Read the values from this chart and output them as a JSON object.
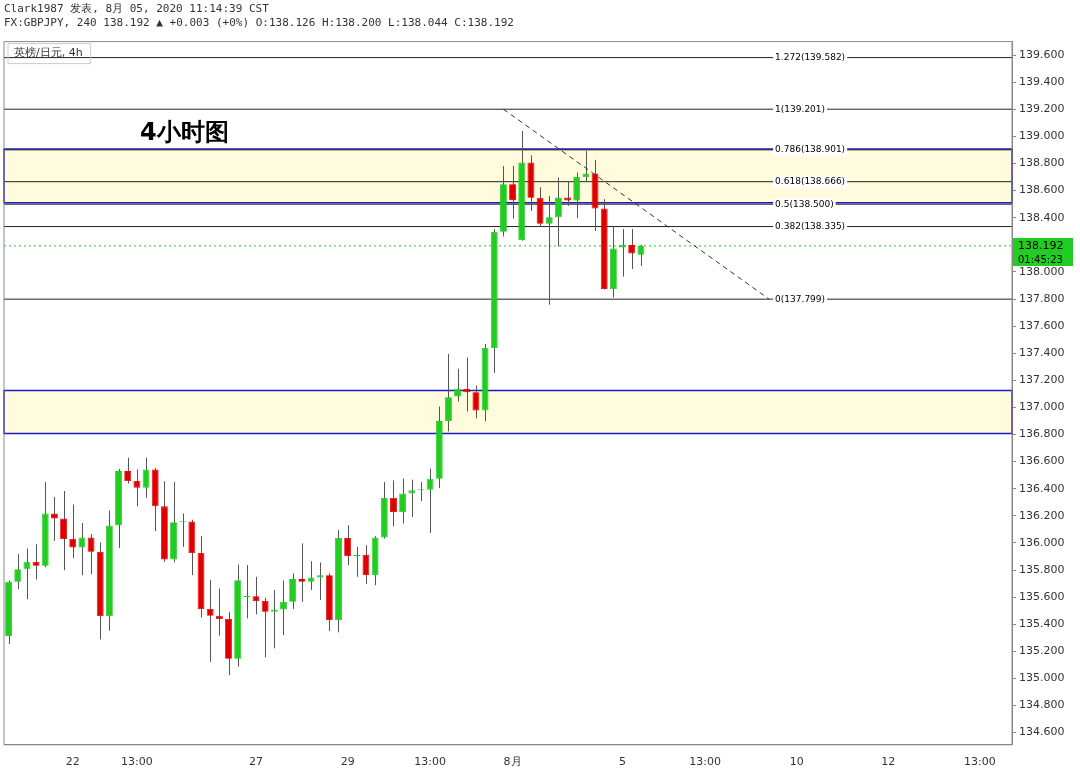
{
  "chart_data": {
    "type": "candlestick",
    "title": "4小时图",
    "annotations": [
      "Clark1987 发表, 8月 05, 2020 11:14:39 CST",
      "FX:GBPJPY, 240 138.192 ▲ +0.003 (+0%) O:138.126 H:138.200 L:138.044 C:138.192",
      "英榜/日元, 4h",
      "01:45:23"
    ],
    "categories": [
      null,
      null,
      null,
      null,
      null,
      null,
      null,
      "22",
      null,
      null,
      null,
      null,
      null,
      null,
      "13:00",
      null,
      null,
      null,
      null,
      null,
      null,
      null,
      null,
      null,
      null,
      null,
      null,
      "27",
      null,
      null,
      null,
      null,
      null,
      null,
      null,
      null,
      null,
      "29",
      null,
      null,
      null,
      null,
      null,
      null,
      null,
      null,
      "13:00",
      null,
      null,
      null,
      null,
      null,
      null,
      null,
      null,
      "8月",
      null,
      null,
      null,
      null,
      null,
      null,
      null,
      null,
      null,
      null,
      null,
      "5",
      null,
      null,
      null,
      null,
      null,
      null,
      null,
      null,
      "13:00",
      null,
      null,
      null,
      null,
      null,
      null,
      null,
      null,
      null,
      "10",
      null,
      null,
      null,
      null,
      null,
      null,
      null,
      null,
      null,
      "12",
      null,
      null,
      null,
      null,
      null,
      null,
      null,
      null,
      null,
      "13:00",
      null,
      null,
      null
    ],
    "ohlc": [
      [
        135.313,
        135.723,
        135.254,
        135.713
      ],
      [
        135.713,
        135.917,
        135.659,
        135.806
      ],
      [
        135.806,
        135.959,
        135.585,
        135.86
      ],
      [
        135.86,
        135.99,
        135.73,
        135.831
      ],
      [
        135.831,
        136.449,
        135.821,
        136.217
      ],
      [
        136.217,
        136.339,
        136.015,
        136.18
      ],
      [
        136.18,
        136.383,
        135.799,
        136.029
      ],
      [
        136.029,
        136.283,
        135.889,
        135.966
      ],
      [
        135.966,
        136.147,
        135.762,
        136.04
      ],
      [
        136.04,
        136.066,
        135.769,
        135.934
      ],
      [
        135.934,
        136.003,
        135.288,
        135.46
      ],
      [
        135.46,
        136.239,
        135.352,
        136.128
      ],
      [
        136.128,
        136.547,
        135.963,
        136.53
      ],
      [
        136.53,
        136.629,
        136.438,
        136.457
      ],
      [
        136.457,
        136.543,
        136.27,
        136.408
      ],
      [
        136.408,
        136.629,
        136.334,
        136.541
      ],
      [
        136.541,
        136.554,
        136.088,
        136.27
      ],
      [
        136.27,
        136.455,
        135.86,
        135.878
      ],
      [
        135.878,
        136.449,
        135.856,
        136.152
      ],
      [
        136.152,
        136.217,
        135.971,
        136.158
      ],
      [
        136.158,
        136.171,
        135.762,
        135.926
      ],
      [
        135.926,
        136.052,
        135.45,
        135.512
      ],
      [
        135.512,
        135.725,
        135.123,
        135.462
      ],
      [
        135.462,
        135.664,
        135.315,
        135.438
      ],
      [
        135.438,
        135.492,
        135.025,
        135.145
      ],
      [
        135.145,
        135.841,
        135.087,
        135.725
      ],
      [
        135.6,
        135.836,
        135.443,
        135.602
      ],
      [
        135.607,
        135.75,
        135.473,
        135.571
      ],
      [
        135.571,
        135.595,
        135.156,
        135.492
      ],
      [
        135.492,
        135.652,
        135.222,
        135.509
      ],
      [
        135.509,
        135.723,
        135.32,
        135.565
      ],
      [
        135.565,
        135.775,
        135.512,
        135.733
      ],
      [
        135.733,
        135.996,
        135.565,
        135.713
      ],
      [
        135.713,
        135.865,
        135.652,
        135.745
      ],
      [
        135.745,
        135.856,
        135.578,
        135.762
      ],
      [
        135.762,
        135.775,
        135.35,
        135.431
      ],
      [
        135.431,
        136.094,
        135.34,
        136.037
      ],
      [
        136.037,
        136.13,
        135.836,
        135.904
      ],
      [
        135.904,
        135.971,
        135.75,
        135.912
      ],
      [
        135.912,
        135.983,
        135.696,
        135.762
      ],
      [
        135.762,
        136.05,
        135.688,
        136.04
      ],
      [
        136.04,
        136.449,
        136.032,
        136.331
      ],
      [
        136.331,
        136.462,
        136.123,
        136.228
      ],
      [
        136.228,
        136.474,
        136.143,
        136.364
      ],
      [
        136.364,
        136.467,
        136.192,
        136.388
      ],
      [
        136.388,
        136.449,
        136.309,
        136.393
      ],
      [
        136.393,
        136.548,
        136.074,
        136.474
      ],
      [
        136.474,
        137.007,
        136.405,
        136.899
      ],
      [
        136.899,
        137.395,
        136.823,
        137.075
      ],
      [
        137.081,
        137.285,
        137.044,
        137.137
      ],
      [
        137.137,
        137.368,
        136.97,
        137.112
      ],
      [
        137.112,
        137.162,
        136.919,
        136.978
      ],
      [
        136.978,
        137.469,
        136.897,
        137.439
      ],
      [
        137.439,
        138.316,
        137.255,
        138.296
      ],
      [
        138.296,
        138.782,
        138.262,
        138.648
      ],
      [
        138.648,
        138.782,
        138.394,
        138.53
      ],
      [
        138.235,
        139.04,
        138.23,
        138.807
      ],
      [
        138.807,
        138.861,
        138.451,
        138.547
      ],
      [
        138.547,
        138.625,
        138.335,
        138.355
      ],
      [
        138.355,
        138.561,
        137.758,
        138.404
      ],
      [
        138.404,
        138.696,
        138.188,
        138.549
      ],
      [
        138.549,
        138.672,
        138.488,
        138.527
      ],
      [
        138.527,
        138.733,
        138.397,
        138.701
      ],
      [
        138.701,
        138.893,
        138.664,
        138.726
      ],
      [
        138.726,
        138.827,
        138.303,
        138.468
      ],
      [
        138.468,
        138.537,
        137.87,
        137.874
      ],
      [
        137.874,
        138.34,
        137.812,
        138.173
      ],
      [
        138.18,
        138.316,
        137.965,
        138.2
      ],
      [
        138.198,
        138.316,
        138.021,
        138.136
      ],
      [
        138.126,
        138.2,
        138.044,
        138.192
      ],
      null,
      null,
      null,
      null,
      null,
      null,
      null,
      null,
      null,
      null,
      null,
      null,
      null,
      null,
      null,
      null,
      null,
      null,
      null,
      null,
      null,
      null,
      null,
      null,
      null,
      null,
      null,
      null,
      null,
      null,
      null,
      null,
      null,
      null,
      null,
      null,
      null,
      null,
      null,
      null
    ],
    "colors": [
      "#22cc22",
      "#22cc22",
      "#22cc22",
      "#e00000",
      "#22cc22",
      "#e00000",
      "#e00000",
      "#e00000",
      "#22cc22",
      "#e00000",
      "#e00000",
      "#22cc22",
      "#22cc22",
      "#e00000",
      "#e00000",
      "#22cc22",
      "#e00000",
      "#e00000",
      "#22cc22",
      "#22cc22",
      "#e00000",
      "#e00000",
      "#e00000",
      "#e00000",
      "#e00000",
      "#22cc22",
      "#22cc22",
      "#e00000",
      "#e00000",
      "#22cc22",
      "#22cc22",
      "#22cc22",
      "#e00000",
      "#22cc22",
      "#22cc22",
      "#e00000",
      "#22cc22",
      "#e00000",
      "#22cc22",
      "#e00000",
      "#22cc22",
      "#22cc22",
      "#e00000",
      "#22cc22",
      "#22cc22",
      "#22cc22",
      "#22cc22",
      "#22cc22",
      "#22cc22",
      "#22cc22",
      "#e00000",
      "#e00000",
      "#22cc22",
      "#22cc22",
      "#22cc22",
      "#e00000",
      "#22cc22",
      "#e00000",
      "#e00000",
      "#22cc22",
      "#22cc22",
      "#e00000",
      "#22cc22",
      "#22cc22",
      "#e00000",
      "#e00000",
      "#22cc22",
      "#22cc22",
      "#e00000",
      "#22cc22",
      null,
      null,
      null,
      null,
      null,
      null,
      null,
      null,
      null,
      null,
      null,
      null,
      null,
      null,
      null,
      null,
      null,
      null,
      null,
      null,
      null,
      null,
      null,
      null,
      null,
      null,
      null,
      null,
      null,
      null,
      null,
      null,
      null,
      null,
      null,
      null,
      null,
      null,
      null,
      null
    ],
    "series": [
      {
        "type": "line",
        "color": "#333333",
        "line_style": "dashed",
        "marker": "none",
        "values": [
          null,
          null,
          null,
          null,
          null,
          null,
          null,
          null,
          null,
          null,
          null,
          null,
          null,
          null,
          null,
          null,
          null,
          null,
          null,
          null,
          null,
          null,
          null,
          null,
          null,
          null,
          null,
          null,
          null,
          null,
          null,
          null,
          null,
          null,
          null,
          null,
          null,
          null,
          null,
          null,
          null,
          null,
          null,
          null,
          null,
          null,
          null,
          null,
          null,
          null,
          null,
          null,
          null,
          null,
          139.201,
          null,
          null,
          null,
          null,
          null,
          null,
          null,
          null,
          null,
          null,
          null,
          null,
          null,
          null,
          null,
          null,
          null,
          null,
          null,
          null,
          null,
          null,
          null,
          null,
          null,
          null,
          null,
          null,
          137.799,
          null,
          null,
          null,
          null,
          null,
          null,
          null,
          null,
          null,
          null,
          null,
          null,
          null,
          null,
          null,
          null,
          null,
          null,
          null,
          null,
          null,
          null,
          null,
          null,
          null,
          null
        ]
      }
    ],
    "ylim": [
      134.51,
      139.7
    ],
    "yticks": [
      {
        "value": 134.6,
        "label": "134.600"
      },
      {
        "value": 134.8,
        "label": "134.800"
      },
      {
        "value": 135.0,
        "label": "135.000"
      },
      {
        "value": 135.2,
        "label": "135.200"
      },
      {
        "value": 135.4,
        "label": "135.400"
      },
      {
        "value": 135.6,
        "label": "135.600"
      },
      {
        "value": 135.8,
        "label": "135.800"
      },
      {
        "value": 136.0,
        "label": "136.000"
      },
      {
        "value": 136.2,
        "label": "136.200"
      },
      {
        "value": 136.4,
        "label": "136.400"
      },
      {
        "value": 136.6,
        "label": "136.600"
      },
      {
        "value": 136.8,
        "label": "136.800"
      },
      {
        "value": 137.0,
        "label": "137.000"
      },
      {
        "value": 137.2,
        "label": "137.200"
      },
      {
        "value": 137.4,
        "label": "137.400"
      },
      {
        "value": 137.6,
        "label": "137.600"
      },
      {
        "value": 137.8,
        "label": "137.800"
      },
      {
        "value": 138.0,
        "label": "138.000"
      },
      {
        "value": 138.2,
        "label": null
      },
      {
        "value": 138.4,
        "label": "138.400"
      },
      {
        "value": 138.6,
        "label": "138.600"
      },
      {
        "value": 138.8,
        "label": "138.800"
      },
      {
        "value": 139.0,
        "label": "139.000"
      },
      {
        "value": 139.2,
        "label": "139.200"
      },
      {
        "value": 139.4,
        "label": "139.400"
      },
      {
        "value": 139.6,
        "label": "139.600"
      }
    ],
    "ref_lines": [
      {
        "axis": "y",
        "value": 138.192,
        "label": "138.192",
        "color": "#22cc22",
        "line_style": "dotted"
      },
      {
        "axis": "y",
        "value": 139.582,
        "label": "1.272(139.582)",
        "color": "#222222"
      },
      {
        "axis": "y",
        "value": 139.201,
        "label": "1(139.201)",
        "color": "#222222"
      },
      {
        "axis": "y",
        "value": 138.901,
        "label": "0.786(138.901)",
        "color": "#222222"
      },
      {
        "axis": "y",
        "value": 138.666,
        "label": "0.618(138.666)",
        "color": "#222222"
      },
      {
        "axis": "y",
        "value": 138.5,
        "label": "0.5(138.500)",
        "color": "#222222"
      },
      {
        "axis": "y",
        "value": 138.335,
        "label": "0.382(138.335)",
        "color": "#222222"
      },
      {
        "axis": "y",
        "value": 137.799,
        "label": "0(137.799)",
        "color": "#222222"
      }
    ],
    "bands": [
      {
        "axis": "y",
        "from": 138.51,
        "to": 138.908,
        "color": "#fffbdc"
      },
      {
        "axis": "y",
        "from": 136.808,
        "to": 137.125,
        "color": "#fffbdc"
      }
    ]
  }
}
